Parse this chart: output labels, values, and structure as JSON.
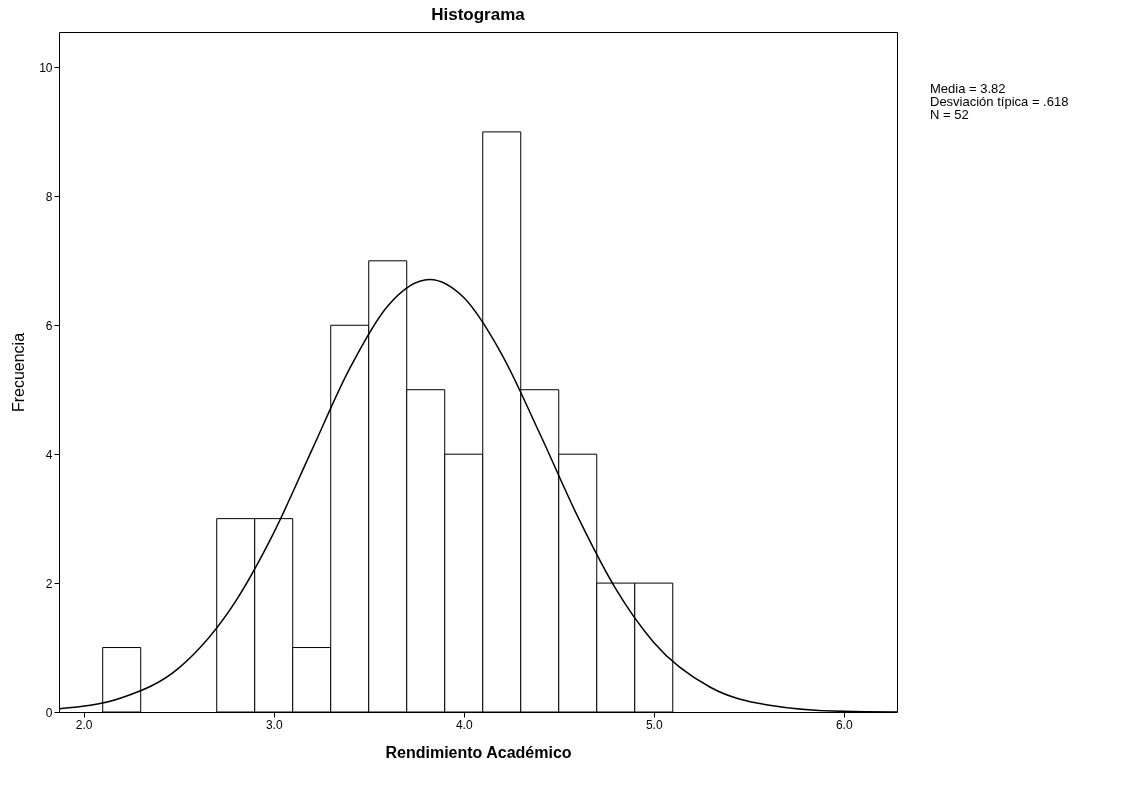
{
  "chart_data": {
    "type": "histogram",
    "title": "Histograma",
    "xlabel": "Rendimiento Académico",
    "ylabel": "Frecuencia",
    "bins": [
      2.1,
      2.3,
      2.5,
      2.7,
      2.9,
      3.1,
      3.3,
      3.5,
      3.7,
      3.9,
      4.1,
      4.3,
      4.5,
      4.7,
      4.9,
      5.1
    ],
    "values": [
      1,
      0,
      0,
      3,
      3,
      1,
      6,
      7,
      5,
      4,
      9,
      5,
      4,
      2,
      2
    ],
    "color": "#ffffff",
    "series": [
      {
        "type": "line",
        "color": "#000000",
        "x": [
          1.87,
          2.2,
          2.5,
          2.8,
          3.0,
          3.2,
          3.4,
          3.6,
          3.82,
          4.0,
          4.2,
          4.4,
          4.6,
          4.8,
          5.0,
          5.3,
          5.6,
          6.0,
          6.28
        ],
        "values": [
          0.05,
          0.22,
          0.68,
          1.72,
          2.78,
          4.06,
          5.33,
          6.3,
          6.71,
          6.43,
          5.55,
          4.32,
          3.03,
          1.91,
          1.08,
          0.38,
          0.11,
          0.01,
          0
        ]
      }
    ],
    "xlim": [
      1.87,
      6.28
    ],
    "xticks": [
      {
        "value": 2,
        "label": "2.0"
      },
      {
        "value": 3,
        "label": "3.0"
      },
      {
        "value": 4,
        "label": "4.0"
      },
      {
        "value": 5,
        "label": "5.0"
      },
      {
        "value": 6,
        "label": "6.0"
      }
    ],
    "ylim": [
      0,
      10.55
    ],
    "yticks": [
      0,
      2,
      4,
      6,
      8,
      10
    ],
    "annotations": [
      "Media = 3.82",
      "Desviación típica = .618",
      "N = 52"
    ]
  }
}
